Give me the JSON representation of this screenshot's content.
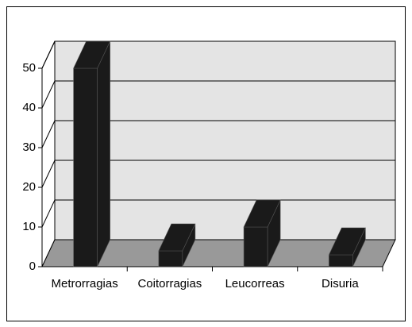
{
  "chart_data": {
    "type": "bar3d",
    "categories": [
      "Metrorragias",
      "Coitorragias",
      "Leucorreas",
      "Disuria"
    ],
    "values": [
      50,
      4,
      10,
      3
    ],
    "color": "#1a1a1a",
    "ylim": [
      0,
      50
    ],
    "yticks": [
      0,
      10,
      20,
      30,
      40,
      50
    ],
    "grid": true
  }
}
